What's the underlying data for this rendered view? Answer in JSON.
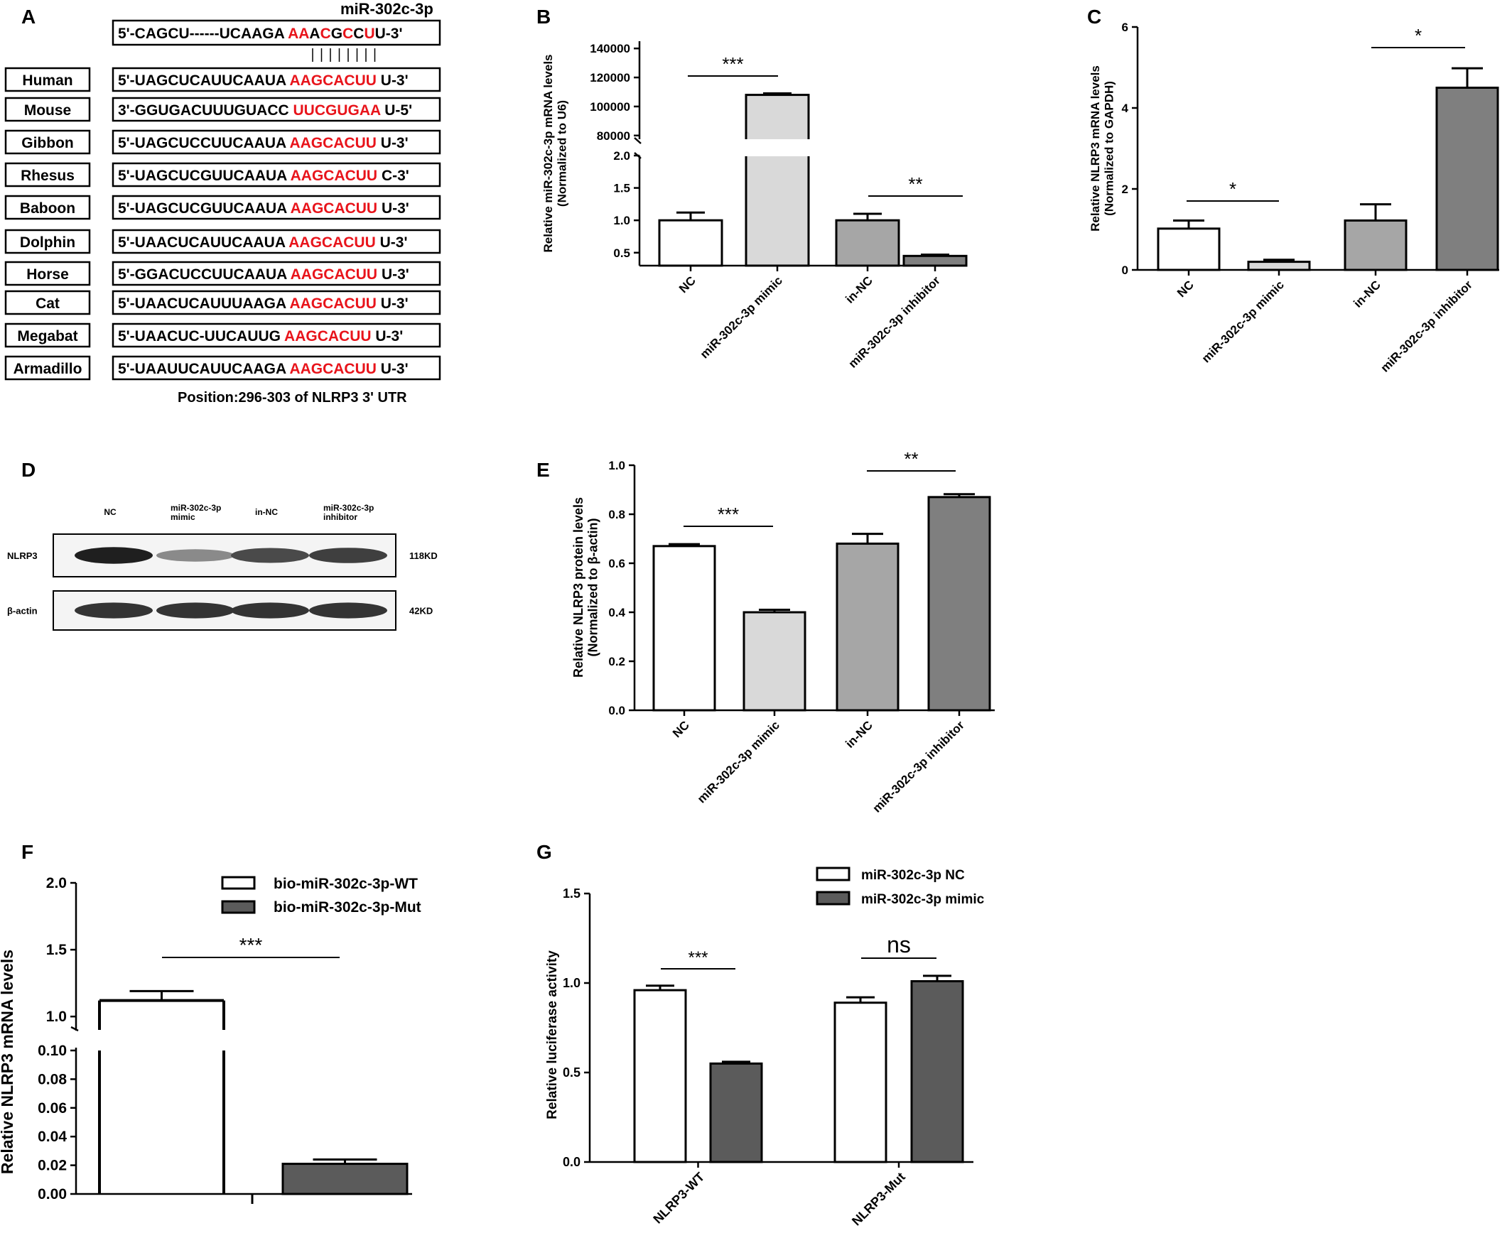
{
  "panels": {
    "A": {
      "letter": "A",
      "mirna_name": "miR-302c-3p",
      "mirna_seq": [
        "5'-CAGCU------UCAAGA ",
        "AA",
        "A",
        "C",
        "G",
        "C",
        "C",
        "U",
        "U-3'"
      ],
      "rows": [
        {
          "species": "Human",
          "seq_pre": "5'-UAGCUCAUUCAAUA ",
          "seed": "AAGCACUU",
          "seq_post": "U-3'"
        },
        {
          "species": "Mouse",
          "seq_pre": "3'-GGUGACUUUGUACC ",
          "seed": "UUCGUGAA",
          "seq_post": "U-5'"
        },
        {
          "species": "Gibbon",
          "seq_pre": "5'-UAGCUCCUUCAAUA ",
          "seed": "AAGCACUU",
          "seq_post": "U-3'"
        },
        {
          "species": "Rhesus",
          "seq_pre": "5'-UAGCUCGUUCAAUA ",
          "seed": "AAGCACUU",
          "seq_post": "C-3'"
        },
        {
          "species": "Baboon",
          "seq_pre": "5'-UAGCUCGUUCAAUA ",
          "seed": "AAGCACUU",
          "seq_post": "U-3'"
        },
        {
          "species": "Dolphin",
          "seq_pre": "5'-UAACUCAUUCAAUA ",
          "seed": "AAGCACUU",
          "seq_post": "U-3'"
        },
        {
          "species": "Horse",
          "seq_pre": "5'-GGACUCCUUCAAUA ",
          "seed": "AAGCACUU",
          "seq_post": "U-3'"
        },
        {
          "species": "Cat",
          "seq_pre": "5'-UAACUCAUUUAAGA ",
          "seed": "AAGCACUU",
          "seq_post": "U-3'"
        },
        {
          "species": "Megabat",
          "seq_pre": "5'-UAACUC-UUCAUUG ",
          "seed": "AAGCACUU",
          "seq_post": "U-3'"
        },
        {
          "species": "Armadillo",
          "seq_pre": "5'-UAAUUCAUUCAAGA ",
          "seed": "AAGCACUU",
          "seq_post": "U-3'"
        }
      ],
      "position_note": "Position:296-303 of NLRP3 3' UTR"
    },
    "D": {
      "letter": "D",
      "lane_labels": [
        [
          "NC"
        ],
        [
          "miR-302c-3p",
          "mimic"
        ],
        [
          "in-NC"
        ],
        [
          "miR-302c-3p",
          "inhibitor"
        ]
      ],
      "bands": [
        {
          "name": "NLRP3",
          "size": "118KD",
          "intensity": [
            0.95,
            0.45,
            0.75,
            0.8
          ]
        },
        {
          "name": "β-actin",
          "size": "42KD",
          "intensity": [
            0.85,
            0.85,
            0.85,
            0.85
          ]
        }
      ]
    }
  },
  "chart_data": [
    {
      "panel": "B",
      "type": "bar",
      "categories": [
        "NC",
        "miR-302c-3p mimic",
        "in-NC",
        "miR-302c-3p inhibitor"
      ],
      "values": [
        1.0,
        108000,
        1.0,
        0.45
      ],
      "errors": [
        0.12,
        1000,
        0.1,
        0.02
      ],
      "colors": [
        "#ffffff",
        "#d9d9d9",
        "#a6a6a6",
        "#7f7f7f"
      ],
      "ylabel": [
        "Relative miR-302c-3p mRNA levels",
        "(Normalized to U6)"
      ],
      "y_lower_ticks": [
        "0.5",
        "1.0",
        "1.5",
        "2.0"
      ],
      "y_upper_ticks": [
        "80000",
        "100000",
        "120000",
        "140000"
      ],
      "broken_axis": {
        "lower": [
          0.3,
          2.0
        ],
        "upper": [
          75000,
          145000
        ]
      },
      "significance": [
        {
          "pair": [
            0,
            1
          ],
          "label": "***"
        },
        {
          "pair": [
            2,
            3
          ],
          "label": "**"
        }
      ]
    },
    {
      "panel": "C",
      "type": "bar",
      "categories": [
        "NC",
        "miR-302c-3p mimic",
        "in-NC",
        "miR-302c-3p inhibitor"
      ],
      "values": [
        1.02,
        0.2,
        1.22,
        4.5
      ],
      "errors": [
        0.2,
        0.05,
        0.4,
        0.48
      ],
      "colors": [
        "#ffffff",
        "#d9d9d9",
        "#a6a6a6",
        "#7f7f7f"
      ],
      "ylabel": [
        "Relative NLRP3 mRNA levels",
        "(Normalized to GAPDH)"
      ],
      "yticks": [
        "0",
        "2",
        "4",
        "6"
      ],
      "ylim": [
        0,
        6
      ],
      "significance": [
        {
          "pair": [
            0,
            1
          ],
          "label": "*"
        },
        {
          "pair": [
            2,
            3
          ],
          "label": "*"
        }
      ]
    },
    {
      "panel": "E",
      "type": "bar",
      "categories": [
        "NC",
        "miR-302c-3p mimic",
        "in-NC",
        "miR-302c-3p inhibitor"
      ],
      "values": [
        0.67,
        0.4,
        0.68,
        0.87
      ],
      "errors": [
        0.008,
        0.01,
        0.04,
        0.012
      ],
      "colors": [
        "#ffffff",
        "#d9d9d9",
        "#a6a6a6",
        "#7f7f7f"
      ],
      "ylabel": [
        "Relative NLRP3 protein levels",
        "(Normalized to β-actin)"
      ],
      "yticks": [
        "0.0",
        "0.2",
        "0.4",
        "0.6",
        "0.8",
        "1.0"
      ],
      "ylim": [
        0,
        1.0
      ],
      "significance": [
        {
          "pair": [
            0,
            1
          ],
          "label": "***"
        },
        {
          "pair": [
            2,
            3
          ],
          "label": "**"
        }
      ]
    },
    {
      "panel": "F",
      "type": "bar",
      "categories": [
        ""
      ],
      "series": [
        {
          "name": "bio-miR-302c-3p-WT",
          "values": [
            1.12
          ],
          "errors": [
            0.07
          ],
          "color": "#ffffff"
        },
        {
          "name": "bio-miR-302c-3p-Mut",
          "values": [
            0.021
          ],
          "errors": [
            0.003
          ],
          "color": "#5b5b5b"
        }
      ],
      "ylabel": "Relative NLRP3 mRNA levels",
      "y_lower_ticks": [
        "0.00",
        "0.02",
        "0.04",
        "0.06",
        "0.08",
        "0.10"
      ],
      "y_upper_ticks": [
        "1.0",
        "1.5",
        "2.0"
      ],
      "broken_axis": {
        "lower": [
          0,
          0.1
        ],
        "upper": [
          0.9,
          2.0
        ]
      },
      "significance": [
        {
          "pair": [
            0,
            1
          ],
          "label": "***"
        }
      ]
    },
    {
      "panel": "G",
      "type": "bar",
      "categories": [
        "NLRP3-WT",
        "NLRP3-Mut"
      ],
      "series": [
        {
          "name": "miR-302c-3p NC",
          "values": [
            0.96,
            0.89
          ],
          "errors": [
            0.025,
            0.03
          ],
          "color": "#ffffff"
        },
        {
          "name": "miR-302c-3p mimic",
          "values": [
            0.55,
            1.01
          ],
          "errors": [
            0.01,
            0.03
          ],
          "color": "#5b5b5b"
        }
      ],
      "ylabel": "Relative luciferase activity",
      "yticks": [
        "0.0",
        "0.5",
        "1.0",
        "1.5"
      ],
      "ylim": [
        0,
        1.5
      ],
      "significance": [
        {
          "group": 0,
          "label": "***"
        },
        {
          "group": 1,
          "label": "ns"
        }
      ]
    }
  ]
}
